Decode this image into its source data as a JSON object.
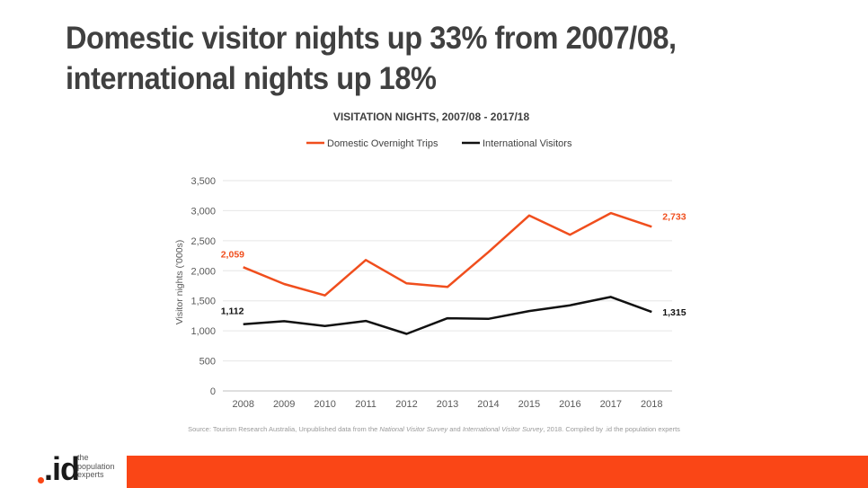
{
  "slide": {
    "title_lines": [
      "Domestic visitor nights up 33% from 2007/08,",
      "international nights up 18%"
    ],
    "source_parts": {
      "a": "Source: Tourism Research Australia, Unpublished data from the ",
      "b": "National Visitor Survey",
      "c": " and ",
      "d": "International Visitor Survey",
      "e": ", 2018. Compiled by .id the population experts"
    }
  },
  "logo": {
    "wordmark": ".id",
    "tagline": [
      "the",
      "population",
      "experts"
    ]
  },
  "colors": {
    "accent": "#fa4616",
    "domestic": "#f04e1d",
    "international": "#111111",
    "grid": "#e6e6e6",
    "axis_text": "#595959",
    "title_text": "#404040"
  },
  "chart_data": {
    "type": "line",
    "title": "VISITATION NIGHTS, 2007/08 - 2017/18",
    "xlabel": "",
    "ylabel": "Visitor nights ('000s)",
    "categories": [
      "2008",
      "2009",
      "2010",
      "2011",
      "2012",
      "2013",
      "2014",
      "2015",
      "2016",
      "2017",
      "2018"
    ],
    "ylim": [
      0,
      3500
    ],
    "yticks": [
      "0",
      "500",
      "1,000",
      "1,500",
      "2,000",
      "2,500",
      "3,000",
      "3,500"
    ],
    "grid": true,
    "legend_position": "top-center",
    "series": [
      {
        "name": "Domestic Overnight Trips",
        "values": [
          2059,
          1780,
          1590,
          2180,
          1790,
          1730,
          2310,
          2920,
          2600,
          2960,
          2733
        ],
        "start_label": "2,059",
        "end_label": "2,733"
      },
      {
        "name": "International Visitors",
        "values": [
          1112,
          1160,
          1080,
          1165,
          950,
          1210,
          1200,
          1330,
          1425,
          1565,
          1315
        ],
        "start_label": "1,112",
        "end_label": "1,315"
      }
    ]
  }
}
